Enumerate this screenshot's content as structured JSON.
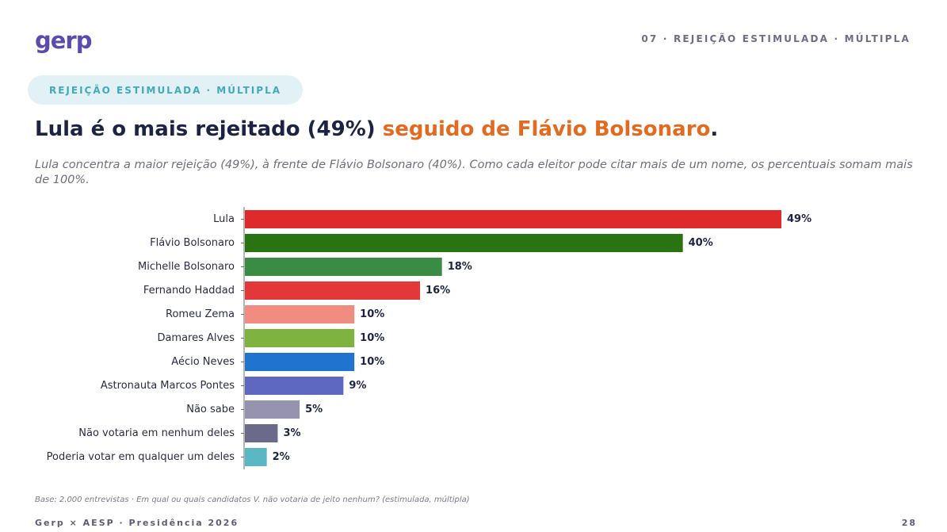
{
  "header": {
    "logo_text": "gerp",
    "section": "07 · REJEIÇÃO ESTIMULADA · MÚLTIPLA"
  },
  "pill": "REJEIÇÃO ESTIMULADA · MÚLTIPLA",
  "headline": {
    "part1": "Lula é o mais rejeitado (49%)",
    "highlight": "seguido de Flávio Bolsonaro",
    "end": "."
  },
  "subtitle": "Lula concentra a maior rejeição (49%), à frente de Flávio Bolsonaro (40%). Como cada eleitor pode citar mais de um nome, os percentuais somam mais de 100%.",
  "chart_data": {
    "type": "bar",
    "orientation": "horizontal",
    "categories": [
      "Lula",
      "Flávio Bolsonaro",
      "Michelle Bolsonaro",
      "Fernando Haddad",
      "Romeu Zema",
      "Damares Alves",
      "Aécio Neves",
      "Astronauta Marcos Pontes",
      "Não sabe",
      "Não votaria em nenhum deles",
      "Poderia votar em qualquer um deles"
    ],
    "values": [
      49,
      40,
      18,
      16,
      10,
      10,
      10,
      9,
      5,
      3,
      2
    ],
    "value_labels": [
      "49%",
      "40%",
      "18%",
      "16%",
      "10%",
      "10%",
      "10%",
      "9%",
      "5%",
      "3%",
      "2%"
    ],
    "colors": [
      "#de2a2a",
      "#2a7312",
      "#3a8c45",
      "#e3383a",
      "#f08c80",
      "#7db33e",
      "#1f74d0",
      "#5e68c0",
      "#9593ad",
      "#6b6a8a",
      "#5ab7c3"
    ],
    "title": "",
    "xlabel": "",
    "ylabel": "",
    "xlim": [
      0,
      49
    ],
    "grid": false,
    "legend": "none"
  },
  "footnote": "Base: 2.000 entrevistas · Em qual ou quais candidatos V. não votaria de jeito nenhum? (estimulada, múltipla)",
  "footer": {
    "left": "Gerp × AESP · Presidência 2026",
    "page": "28"
  }
}
